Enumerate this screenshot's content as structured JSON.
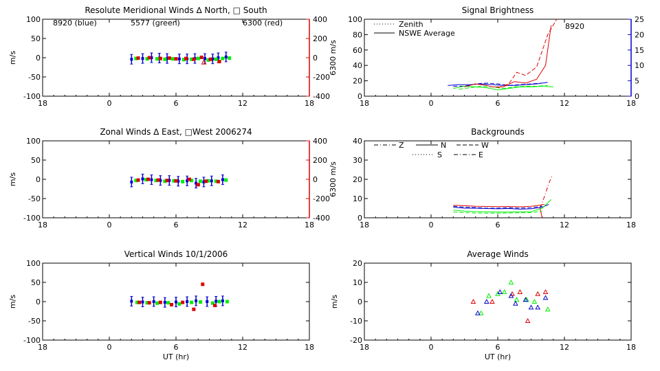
{
  "colors": {
    "blue": "#0000cc",
    "green": "#00ee00",
    "red": "#dd0000",
    "black": "#000000"
  },
  "chart_data": [
    {
      "id": "p1",
      "type": "scatter",
      "title": "Resolute Meridional Winds ∆ North, □ South",
      "ylabel": "m/s",
      "y2label": "6300 m/s",
      "xlim": [
        18,
        42
      ],
      "ylim": [
        -100,
        100
      ],
      "y2lim": [
        -400,
        400
      ],
      "x_ticks": [
        "18",
        "0",
        "6",
        "12",
        "18"
      ],
      "y_ticks": [
        "100",
        "50",
        "0",
        "-50",
        "-100"
      ],
      "y2_ticks": [
        "400",
        "200",
        "0",
        "-200",
        "-400"
      ],
      "annotations": [
        "8920 (blue)",
        "5577 (green)",
        "6300 (red)"
      ],
      "series": [
        {
          "color": "blue",
          "marker": "errbar",
          "x": [
            26.0,
            27.0,
            27.8,
            28.5,
            29.2,
            30.3,
            31.0,
            31.7,
            32.6,
            33.3,
            33.8,
            34.5
          ],
          "y": [
            -4,
            -2,
            0,
            -1,
            -2,
            -3,
            -3,
            -2,
            -2,
            -3,
            0,
            2
          ]
        },
        {
          "color": "green",
          "marker": "square",
          "x": [
            26.4,
            27.4,
            28.3,
            29.0,
            29.7,
            30.7,
            31.4,
            32.0,
            32.9,
            33.6,
            34.2,
            34.8
          ],
          "y": [
            -2,
            -3,
            -3,
            -4,
            -3,
            -5,
            -4,
            -2,
            -6,
            -4,
            -2,
            -1
          ]
        },
        {
          "color": "red",
          "marker": "square",
          "x": [
            26.6,
            27.6,
            28.6,
            29.4,
            30.0,
            30.9,
            31.6,
            32.3,
            33.1,
            33.9
          ],
          "y": [
            -1,
            0,
            -2,
            -1,
            -3,
            -2,
            -4,
            1,
            -4,
            -10
          ]
        },
        {
          "color": "red",
          "marker": "triangle",
          "x": [
            32.5
          ],
          "y": [
            -12
          ]
        }
      ]
    },
    {
      "id": "p2",
      "type": "line",
      "title": "Signal Brightness",
      "xlim": [
        18,
        42
      ],
      "ylim": [
        0,
        100
      ],
      "y2lim": [
        0,
        25
      ],
      "x_ticks": [
        "18",
        "0",
        "6",
        "12",
        "18"
      ],
      "y_ticks": [
        "100",
        "80",
        "60",
        "40",
        "20",
        "0"
      ],
      "y2_ticks": [
        "25",
        "20",
        "15",
        "10",
        "5",
        "0"
      ],
      "legend": [
        "Zenith",
        "NSWE Average"
      ],
      "annotations": [
        "8920"
      ],
      "series": [
        {
          "color": "blue",
          "style": "solid",
          "x": [
            25.5,
            26.5,
            27.5,
            28.5,
            29.5,
            30.5,
            31.5,
            32.5,
            33.5,
            34.5
          ],
          "y": [
            14,
            15,
            15,
            16,
            15,
            14,
            14,
            15,
            16,
            18
          ]
        },
        {
          "color": "blue",
          "style": "dash",
          "x": [
            26.0,
            27.0,
            28.0,
            29.0,
            30.0,
            31.0,
            32.0,
            33.0,
            34.0
          ],
          "y": [
            13,
            13,
            16,
            17,
            16,
            14,
            15,
            16,
            17
          ]
        },
        {
          "color": "green",
          "style": "solid",
          "x": [
            26.0,
            27.0,
            28.0,
            29.0,
            30.0,
            31.0,
            32.0,
            33.0,
            34.0,
            35.0
          ],
          "y": [
            10,
            13,
            12,
            11,
            8,
            10,
            12,
            12,
            13,
            12
          ]
        },
        {
          "color": "green",
          "style": "dash",
          "x": [
            26.5,
            27.5,
            28.5,
            29.5,
            30.5,
            31.5,
            32.5,
            33.5,
            34.5
          ],
          "y": [
            9,
            11,
            13,
            12,
            10,
            12,
            13,
            13,
            14
          ]
        },
        {
          "color": "red",
          "style": "solid",
          "x": [
            27.0,
            28.0,
            29.0,
            29.5,
            30.5,
            31.5,
            32.5,
            33.5,
            34.3,
            34.8
          ],
          "y": [
            12,
            16,
            14,
            12,
            12,
            19,
            17,
            22,
            40,
            92
          ]
        },
        {
          "color": "red",
          "style": "dash",
          "x": [
            30.0,
            31.0,
            31.7,
            32.5,
            33.5,
            34.5,
            35.3
          ],
          "y": [
            11,
            16,
            31,
            27,
            38,
            80,
            100
          ]
        }
      ]
    },
    {
      "id": "p3",
      "type": "scatter",
      "title": "Zonal Winds ∆ East, □West 2006274",
      "ylabel": "m/s",
      "y2label": "6300 m/s",
      "xlim": [
        18,
        42
      ],
      "ylim": [
        -100,
        100
      ],
      "y2lim": [
        -400,
        400
      ],
      "x_ticks": [
        "18",
        "0",
        "6",
        "12",
        "18"
      ],
      "y_ticks": [
        "100",
        "50",
        "0",
        "-50",
        "-100"
      ],
      "y2_ticks": [
        "400",
        "200",
        "0",
        "-200",
        "-400"
      ],
      "series": [
        {
          "color": "blue",
          "marker": "errbar",
          "x": [
            26.0,
            27.0,
            27.8,
            28.6,
            29.4,
            30.2,
            31.0,
            31.8,
            32.5,
            33.2,
            34.2
          ],
          "y": [
            -7,
            1,
            -1,
            -3,
            -3,
            -5,
            -4,
            -10,
            -7,
            -4,
            -1
          ]
        },
        {
          "color": "green",
          "marker": "square",
          "x": [
            26.4,
            27.3,
            28.2,
            29.0,
            29.8,
            30.6,
            31.4,
            32.2,
            32.9,
            33.6,
            34.5
          ],
          "y": [
            -3,
            -1,
            -3,
            -5,
            -4,
            -6,
            -3,
            -5,
            -4,
            -5,
            -2
          ]
        },
        {
          "color": "red",
          "marker": "square",
          "x": [
            26.6,
            27.5,
            28.4,
            29.2,
            30.0,
            31.2,
            32.0,
            32.7,
            33.8
          ],
          "y": [
            -2,
            0,
            -2,
            -3,
            -4,
            0,
            -14,
            -5,
            -6
          ]
        }
      ]
    },
    {
      "id": "p4",
      "type": "line",
      "title": "Backgrounds",
      "xlim": [
        18,
        42
      ],
      "ylim": [
        0,
        40
      ],
      "x_ticks": [
        "18",
        "0",
        "6",
        "12",
        "18"
      ],
      "y_ticks": [
        "40",
        "30",
        "20",
        "10",
        "0"
      ],
      "legend": [
        "Z",
        "N",
        "W",
        "S",
        "E"
      ],
      "series": [
        {
          "color": "red",
          "style": "solid",
          "x": [
            26,
            27,
            28,
            29,
            30,
            31,
            32,
            33,
            33.8,
            34.2
          ],
          "y": [
            6.5,
            6.3,
            6,
            5.9,
            5.8,
            5.9,
            5.7,
            6,
            6.5,
            7
          ]
        },
        {
          "color": "red",
          "style": "dashdot",
          "x": [
            33.8,
            34.2,
            34.6,
            34.9
          ],
          "y": [
            5,
            11,
            18,
            22
          ]
        },
        {
          "color": "red",
          "style": "solid",
          "x": [
            33.8,
            34.0
          ],
          "y": [
            5,
            0
          ]
        },
        {
          "color": "blue",
          "style": "solid",
          "x": [
            26,
            27,
            28,
            29,
            30,
            31,
            32,
            33,
            34,
            34.6
          ],
          "y": [
            5.5,
            5,
            5,
            4.8,
            4.7,
            4.8,
            4.5,
            4.7,
            5.5,
            7
          ]
        },
        {
          "color": "blue",
          "style": "dash",
          "x": [
            26,
            27,
            28,
            29,
            30,
            31,
            32,
            33,
            34
          ],
          "y": [
            6,
            5.5,
            5.3,
            5,
            5,
            5.2,
            5,
            5.2,
            6
          ]
        },
        {
          "color": "green",
          "style": "solid",
          "x": [
            26,
            27,
            28,
            29,
            30,
            31,
            32,
            33,
            34,
            34.8
          ],
          "y": [
            4,
            3.5,
            3.2,
            3.1,
            3,
            3,
            3.1,
            3.2,
            5,
            9.5
          ]
        },
        {
          "color": "green",
          "style": "dash",
          "x": [
            26,
            27,
            28,
            29,
            30,
            31,
            32,
            33,
            34
          ],
          "y": [
            3,
            2.7,
            2.5,
            2.4,
            2.4,
            2.5,
            2.6,
            2.7,
            3.5
          ]
        }
      ]
    },
    {
      "id": "p5",
      "type": "scatter",
      "title": "Vertical Winds 10/1/2006",
      "xlabel": "UT (hr)",
      "ylabel": "m/s",
      "xlim": [
        18,
        42
      ],
      "ylim": [
        -100,
        100
      ],
      "x_ticks": [
        "18",
        "0",
        "6",
        "12",
        "18"
      ],
      "y_ticks": [
        "100",
        "50",
        "0",
        "-50",
        "-100"
      ],
      "series": [
        {
          "color": "blue",
          "marker": "errbar",
          "x": [
            26.0,
            27.0,
            28.0,
            29.0,
            30.0,
            31.0,
            31.8,
            32.8,
            33.6,
            34.2
          ],
          "y": [
            1,
            -1,
            0,
            -2,
            -1,
            0,
            2,
            0,
            1,
            2
          ]
        },
        {
          "color": "green",
          "marker": "square",
          "x": [
            26.5,
            27.4,
            28.3,
            29.3,
            30.3,
            31.4,
            32.2,
            33.3,
            33.9,
            34.6
          ],
          "y": [
            -2,
            -3,
            -4,
            -3,
            -6,
            -2,
            -1,
            -4,
            0,
            0
          ]
        },
        {
          "color": "red",
          "marker": "square",
          "x": [
            26.7,
            27.6,
            28.6,
            29.6,
            30.6,
            31.6,
            32.4,
            33.5
          ],
          "y": [
            -2,
            -3,
            -2,
            -8,
            -2,
            -20,
            45,
            -10
          ]
        }
      ]
    },
    {
      "id": "p6",
      "type": "scatter",
      "title": "Average Winds",
      "xlabel": "UT (hr)",
      "ylabel": "m/s",
      "xlim": [
        18,
        42
      ],
      "ylim": [
        -20,
        20
      ],
      "x_ticks": [
        "18",
        "0",
        "6",
        "12",
        "18"
      ],
      "y_ticks": [
        "20",
        "10",
        "0",
        "-10",
        "-20"
      ],
      "series": [
        {
          "color": "red",
          "marker": "triangle",
          "x": [
            27.8,
            29.5,
            31.3,
            32.0,
            32.7,
            33.6,
            34.3
          ],
          "y": [
            0,
            0,
            4,
            5,
            -10,
            4,
            5
          ]
        },
        {
          "color": "green",
          "marker": "triangle",
          "x": [
            28.5,
            29.2,
            30.0,
            30.6,
            31.2,
            31.7,
            32.6,
            33.3,
            34.5
          ],
          "y": [
            -6,
            3,
            4,
            5,
            10,
            1,
            1,
            0,
            -4
          ]
        },
        {
          "color": "blue",
          "marker": "triangle",
          "x": [
            28.2,
            29.0,
            30.2,
            31.2,
            31.6,
            32.5,
            33.0,
            33.6,
            34.3
          ],
          "y": [
            -6,
            0,
            5,
            3,
            -1,
            1,
            -3,
            -3,
            2
          ]
        }
      ]
    }
  ]
}
